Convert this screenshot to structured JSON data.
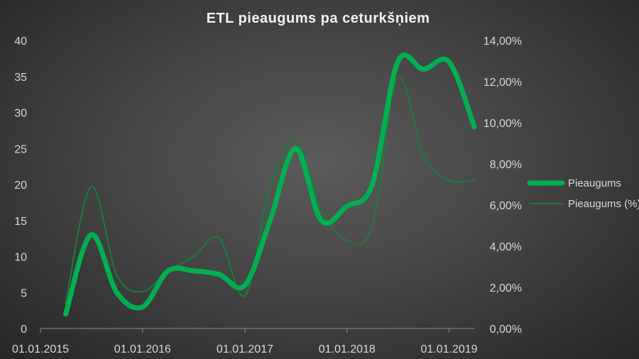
{
  "chart_data": {
    "type": "line",
    "title": "ETL pieaugums pa ceturkšņiem",
    "x": [
      "01.04.2015",
      "01.07.2015",
      "01.10.2015",
      "01.01.2016",
      "01.04.2016",
      "01.07.2016",
      "01.10.2016",
      "01.01.2017",
      "01.04.2017",
      "01.07.2017",
      "01.10.2017",
      "01.01.2018",
      "01.04.2018",
      "01.07.2018",
      "01.10.2018",
      "01.01.2019",
      "01.04.2019"
    ],
    "x_tick_labels": [
      "01.01.2015",
      "01.01.2016",
      "01.01.2017",
      "01.01.2018",
      "01.01.2019"
    ],
    "series": [
      {
        "name": "Pieaugums",
        "axis": "left",
        "color": "#00b050",
        "values": [
          2,
          13,
          5,
          3,
          8,
          8,
          7.5,
          6,
          15,
          25,
          15,
          17,
          20,
          37,
          36,
          37,
          28
        ]
      },
      {
        "name": "Pieaugums (%)",
        "axis": "right",
        "color": "#1e7a3c",
        "values": [
          1.2,
          6.9,
          2.6,
          1.8,
          2.8,
          3.5,
          4.4,
          1.6,
          6.9,
          9.2,
          5.8,
          4.3,
          5.0,
          12.2,
          8.4,
          7.2,
          7.2
        ]
      }
    ],
    "y_left": {
      "min": 0,
      "max": 40,
      "step": 5,
      "ticks": [
        "0",
        "5",
        "10",
        "15",
        "20",
        "25",
        "30",
        "35",
        "40"
      ]
    },
    "y_right": {
      "min": 0,
      "max": 14,
      "step": 2,
      "ticks": [
        "0,00%",
        "2,00%",
        "4,00%",
        "6,00%",
        "8,00%",
        "10,00%",
        "12,00%",
        "14,00%"
      ]
    },
    "grid": false,
    "legend_position": "right"
  }
}
